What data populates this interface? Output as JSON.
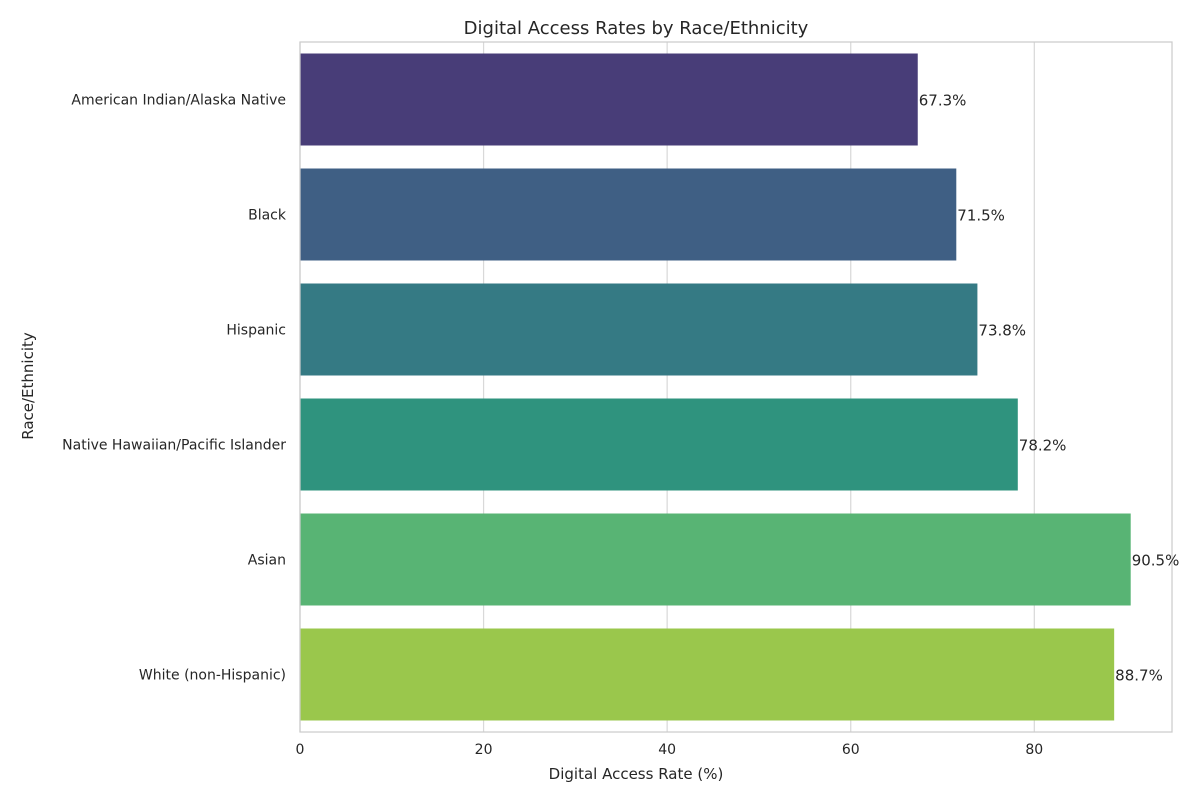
{
  "chart_data": {
    "type": "bar",
    "orientation": "horizontal",
    "title": "Digital Access Rates by Race/Ethnicity",
    "xlabel": "Digital Access Rate (%)",
    "ylabel": "Race/Ethnicity",
    "categories": [
      "American Indian/Alaska Native",
      "Black",
      "Hispanic",
      "Native Hawaiian/Pacific Islander",
      "Asian",
      "White (non-Hispanic)"
    ],
    "values": [
      67.3,
      71.5,
      73.8,
      78.2,
      90.5,
      88.7
    ],
    "data_labels": [
      "67.3%",
      "71.5%",
      "73.8%",
      "78.2%",
      "90.5%",
      "88.7%"
    ],
    "colors": [
      "#483d78",
      "#3f5f84",
      "#357a84",
      "#2f937e",
      "#58b474",
      "#9ac74c"
    ],
    "xlim": [
      0,
      95
    ],
    "xticks": [
      0,
      20,
      40,
      60,
      80
    ],
    "grid": true
  }
}
